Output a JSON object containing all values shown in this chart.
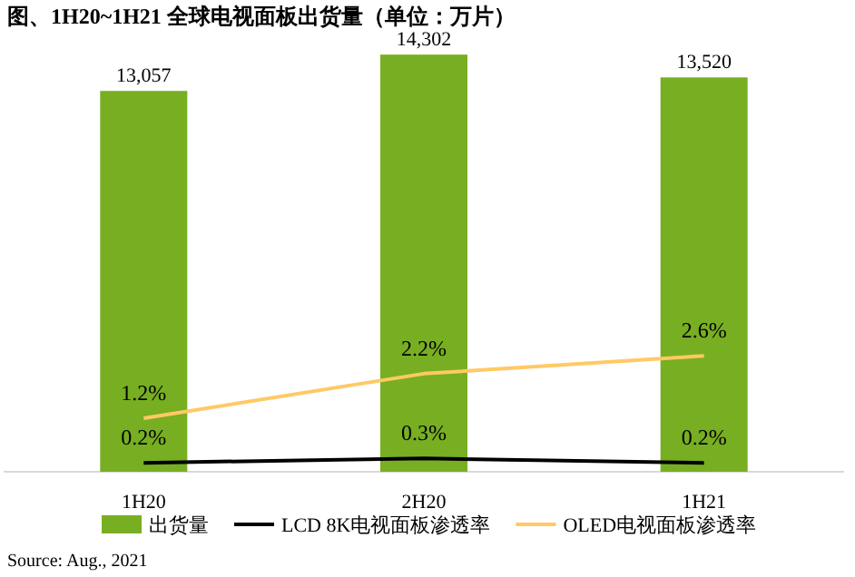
{
  "chart_data": {
    "type": "bar",
    "title": "图、1H20~1H21 全球电视面板出货量（单位：万片）",
    "categories": [
      "1H20",
      "2H20",
      "1H21"
    ],
    "series": [
      {
        "name": "出货量",
        "color": "#78ae22",
        "values": [
          13057,
          14302,
          13520
        ],
        "value_labels": [
          "13,057",
          "14,302",
          "13,520"
        ]
      },
      {
        "name": "LCD 8K电视面板渗透率",
        "type": "line",
        "axis": "y2",
        "color": "#000000",
        "values": [
          0.2,
          0.3,
          0.2
        ],
        "value_labels": [
          "0.2%",
          "0.3%",
          "0.2%"
        ]
      },
      {
        "name": "OLED电视面板渗透率",
        "type": "line",
        "axis": "y2",
        "color": "#ffc965",
        "values": [
          1.2,
          2.2,
          2.6
        ],
        "value_labels": [
          "1.2%",
          "2.2%",
          "2.6%"
        ]
      }
    ],
    "tick_labels": "x",
    "legend": "bottom",
    "marker": "none",
    "line_style": "solid",
    "annotations": [
      "Source: Aug., 2021"
    ]
  }
}
